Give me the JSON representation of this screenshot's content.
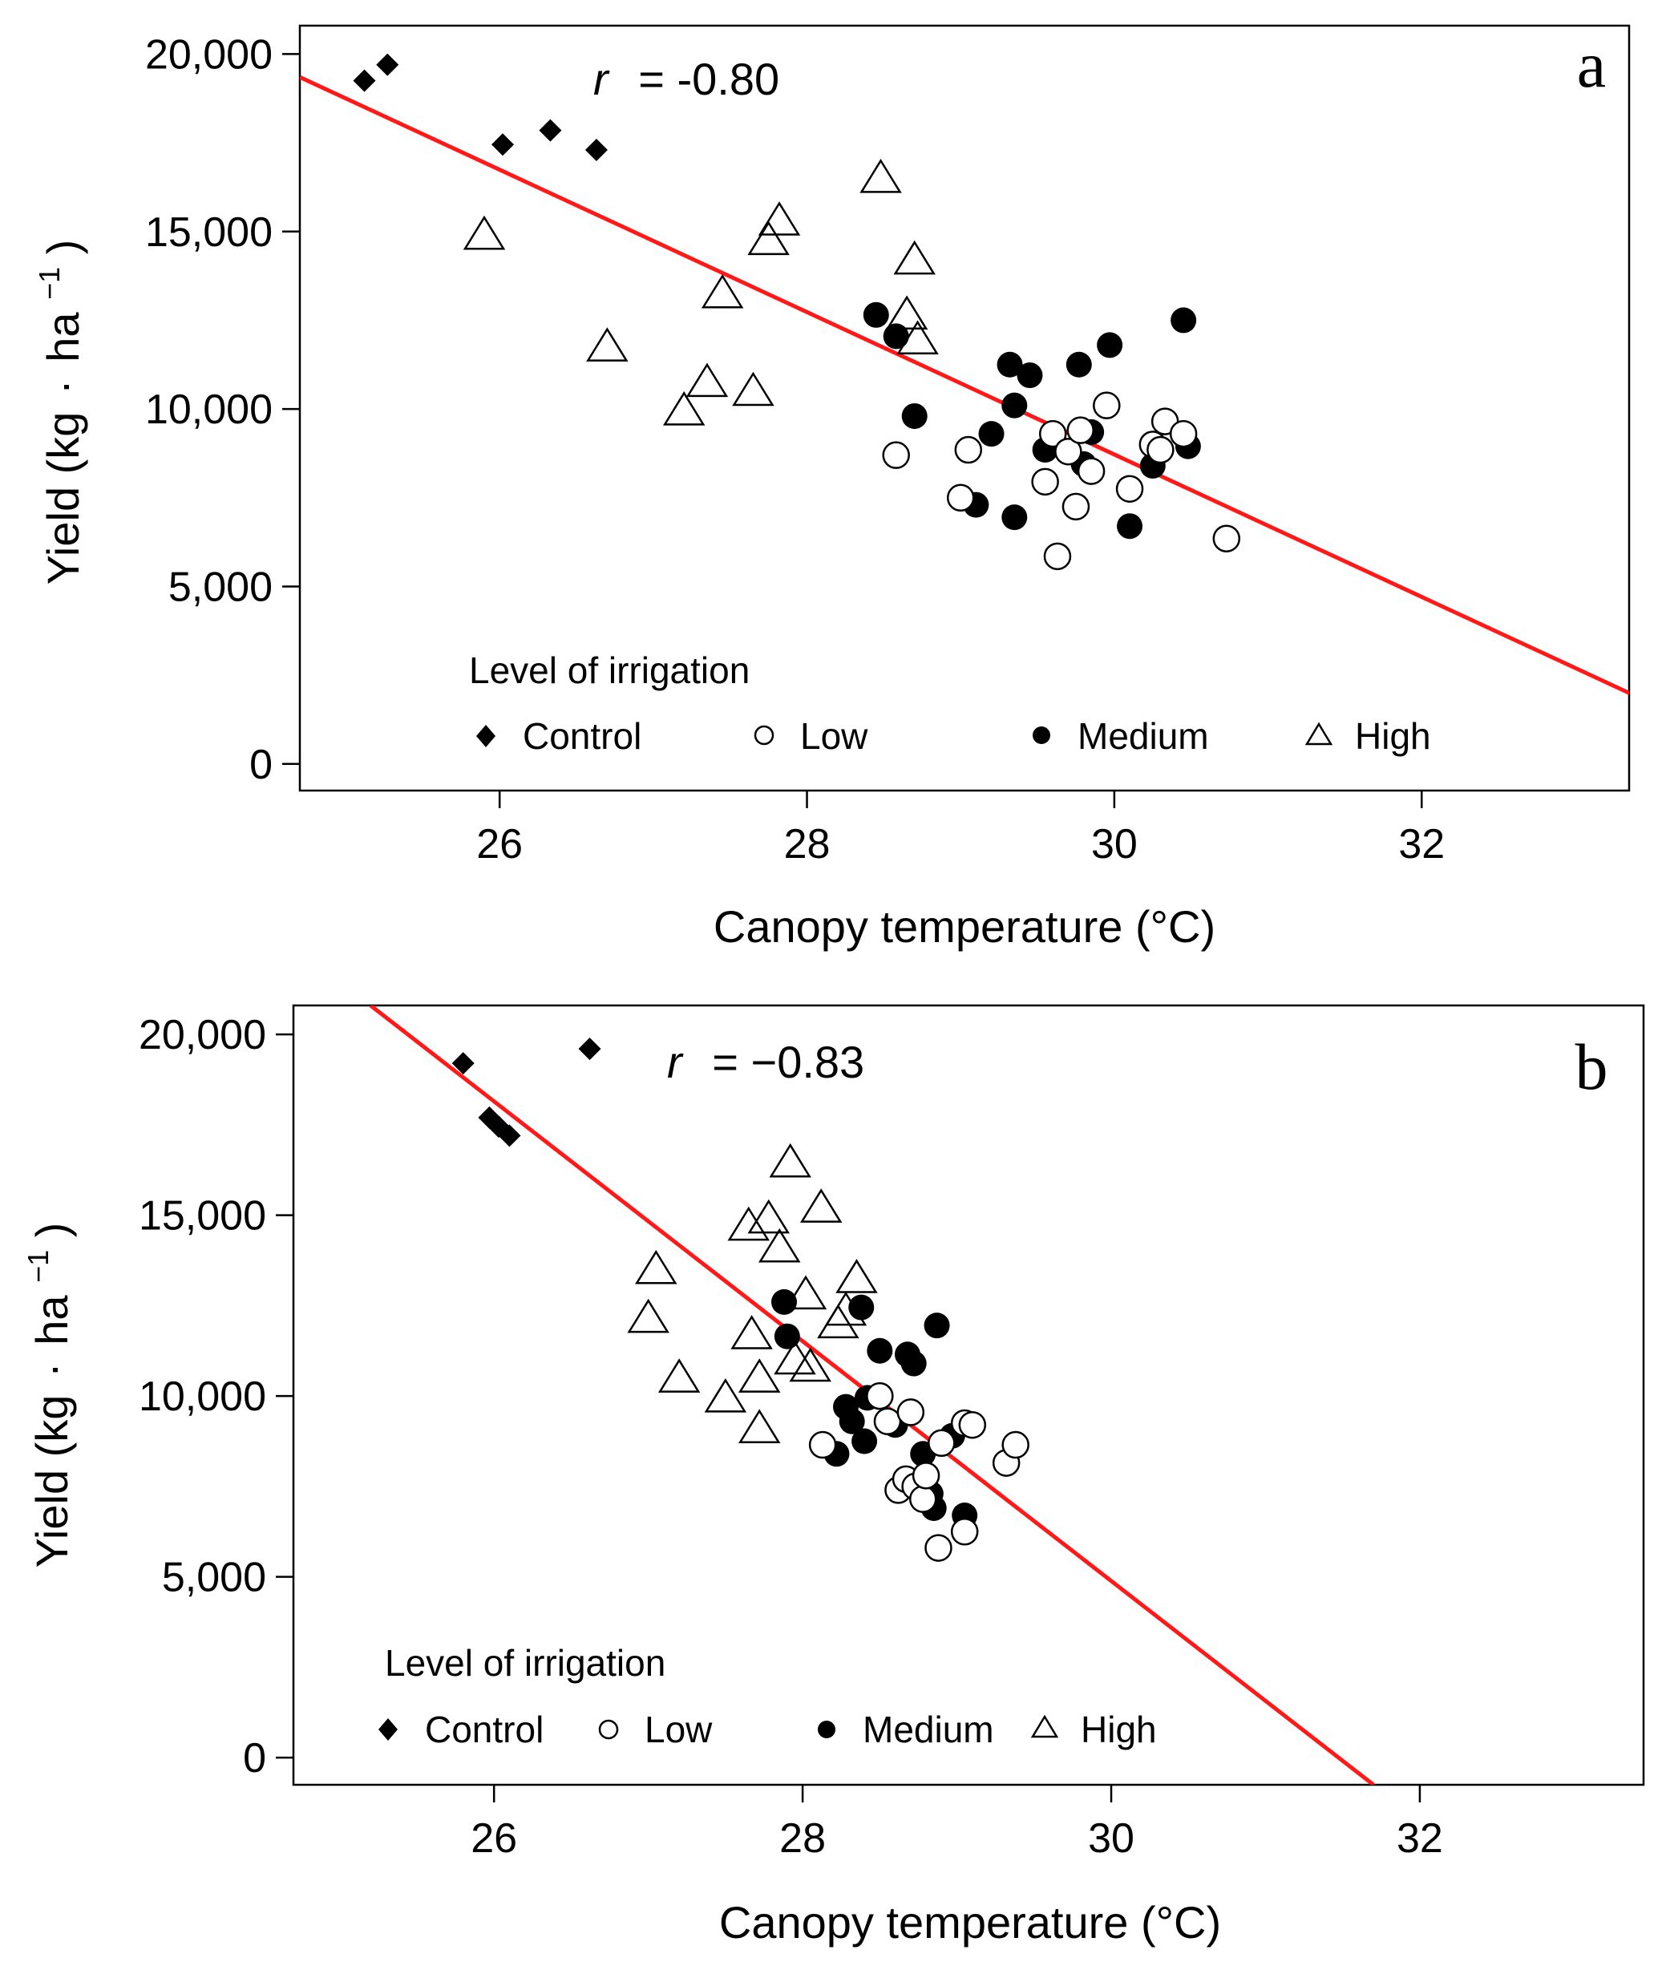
{
  "colors": {
    "fit_line": "#ff1a1a",
    "points": "#000000",
    "background": "#ffffff"
  },
  "chart_data": [
    {
      "type": "scatter",
      "panel_label": "a",
      "title": "",
      "xlabel": "Canopy temperature (°C)",
      "ylabel_prefix": "Yield (kg",
      "ylabel_dot": "·",
      "ylabel_unit": "ha",
      "ylabel_exp": "−1",
      "ylabel_suffix": ")",
      "xlim": [
        24.7,
        33.35
      ],
      "ylim": [
        -750,
        20800
      ],
      "x_ticks": [
        26,
        28,
        30,
        32
      ],
      "x_tick_labels": [
        "26",
        "28",
        "30",
        "32"
      ],
      "y_ticks": [
        0,
        5000,
        10000,
        15000,
        20000
      ],
      "y_tick_labels": [
        "0",
        "5,000",
        "10,000",
        "15,000",
        "20,000"
      ],
      "grid": false,
      "correlation": {
        "symbol": "r",
        "equals": "=",
        "value": "-0.80"
      },
      "fit_line": {
        "x1": 24.7,
        "y1": 19350,
        "x2": 33.35,
        "y2": 2000
      },
      "legend": {
        "title": "Level of irrigation",
        "placement": "bottom-left",
        "entries": [
          {
            "label": "Control",
            "marker": "diamond"
          },
          {
            "label": "Low",
            "marker": "open-circle"
          },
          {
            "label": "Medium",
            "marker": "filled-circle"
          },
          {
            "label": "High",
            "marker": "open-triangle"
          }
        ]
      },
      "series": [
        {
          "name": "Control",
          "marker": "diamond",
          "points": [
            [
              25.12,
              19250
            ],
            [
              25.27,
              19700
            ],
            [
              26.02,
              17450
            ],
            [
              26.33,
              17850
            ],
            [
              26.63,
              17300
            ]
          ]
        },
        {
          "name": "High",
          "marker": "open-triangle",
          "points": [
            [
              25.9,
              14900
            ],
            [
              26.7,
              11750
            ],
            [
              27.2,
              9950
            ],
            [
              27.35,
              10750
            ],
            [
              27.45,
              13250
            ],
            [
              27.65,
              10500
            ],
            [
              27.75,
              14750
            ],
            [
              27.82,
              15300
            ],
            [
              28.48,
              16500
            ],
            [
              28.65,
              12650
            ],
            [
              28.7,
              14200
            ],
            [
              28.72,
              11950
            ]
          ]
        },
        {
          "name": "Medium",
          "marker": "filled-circle",
          "points": [
            [
              28.45,
              12650
            ],
            [
              28.58,
              12050
            ],
            [
              28.7,
              9800
            ],
            [
              29.1,
              7300
            ],
            [
              29.2,
              9300
            ],
            [
              29.32,
              11250
            ],
            [
              29.35,
              10100
            ],
            [
              29.45,
              10950
            ],
            [
              29.35,
              6950
            ],
            [
              29.55,
              8850
            ],
            [
              29.77,
              11250
            ],
            [
              29.8,
              8450
            ],
            [
              29.85,
              9350
            ],
            [
              29.97,
              11800
            ],
            [
              30.1,
              6700
            ],
            [
              30.25,
              8400
            ],
            [
              30.45,
              12500
            ],
            [
              30.48,
              8950
            ]
          ]
        },
        {
          "name": "Low",
          "marker": "open-circle",
          "points": [
            [
              28.58,
              8700
            ],
            [
              29.0,
              7500
            ],
            [
              29.05,
              8850
            ],
            [
              29.55,
              7950
            ],
            [
              29.6,
              9300
            ],
            [
              29.63,
              5850
            ],
            [
              29.7,
              8800
            ],
            [
              29.75,
              7250
            ],
            [
              29.78,
              9400
            ],
            [
              29.85,
              8250
            ],
            [
              29.95,
              10100
            ],
            [
              30.1,
              7750
            ],
            [
              30.25,
              9000
            ],
            [
              30.3,
              8850
            ],
            [
              30.33,
              9650
            ],
            [
              30.45,
              9300
            ],
            [
              30.73,
              6350
            ]
          ]
        }
      ]
    },
    {
      "type": "scatter",
      "panel_label": "b",
      "title": "",
      "xlabel": "Canopy temperature (°C)",
      "ylabel_prefix": "Yield (kg",
      "ylabel_dot": "·",
      "ylabel_unit": "ha",
      "ylabel_exp": "−1",
      "ylabel_suffix": ")",
      "xlim": [
        24.7,
        33.45
      ],
      "ylim": [
        -750,
        20800
      ],
      "x_ticks": [
        26,
        28,
        30,
        32
      ],
      "x_tick_labels": [
        "26",
        "28",
        "30",
        "32"
      ],
      "y_ticks": [
        0,
        5000,
        10000,
        15000,
        20000
      ],
      "y_tick_labels": [
        "0",
        "5,000",
        "10,000",
        "15,000",
        "20,000"
      ],
      "grid": false,
      "correlation": {
        "symbol": "r",
        "equals": "=",
        "value": "−0.83"
      },
      "fit_line": {
        "x1": 25.2,
        "y1": 20800,
        "x2": 31.7,
        "y2": -750
      },
      "legend": {
        "title": "Level of irrigation",
        "placement": "bottom-left",
        "entries": [
          {
            "label": "Control",
            "marker": "diamond"
          },
          {
            "label": "Low",
            "marker": "open-circle"
          },
          {
            "label": "Medium",
            "marker": "filled-circle"
          },
          {
            "label": "High",
            "marker": "open-triangle"
          }
        ]
      },
      "series": [
        {
          "name": "Control",
          "marker": "diamond",
          "points": [
            [
              25.8,
              19200
            ],
            [
              25.97,
              17700
            ],
            [
              26.03,
              17450
            ],
            [
              26.1,
              17200
            ],
            [
              26.62,
              19600
            ]
          ]
        },
        {
          "name": "High",
          "marker": "open-triangle",
          "points": [
            [
              27.0,
              12150
            ],
            [
              27.05,
              13500
            ],
            [
              27.2,
              10500
            ],
            [
              27.5,
              9950
            ],
            [
              27.65,
              14700
            ],
            [
              27.67,
              11700
            ],
            [
              27.72,
              10500
            ],
            [
              27.72,
              9100
            ],
            [
              27.78,
              14900
            ],
            [
              27.85,
              14100
            ],
            [
              27.92,
              16450
            ],
            [
              27.95,
              11000
            ],
            [
              28.02,
              12800
            ],
            [
              28.05,
              10800
            ],
            [
              28.12,
              15200
            ],
            [
              28.23,
              12000
            ],
            [
              28.28,
              12350
            ],
            [
              28.35,
              13250
            ]
          ]
        },
        {
          "name": "Medium",
          "marker": "filled-circle",
          "points": [
            [
              27.88,
              12600
            ],
            [
              27.9,
              11650
            ],
            [
              28.22,
              8400
            ],
            [
              28.28,
              9700
            ],
            [
              28.32,
              9300
            ],
            [
              28.38,
              12450
            ],
            [
              28.4,
              8750
            ],
            [
              28.42,
              9950
            ],
            [
              28.5,
              11250
            ],
            [
              28.6,
              9200
            ],
            [
              28.68,
              11150
            ],
            [
              28.72,
              10900
            ],
            [
              28.78,
              8400
            ],
            [
              28.83,
              7300
            ],
            [
              28.85,
              6900
            ],
            [
              28.87,
              11950
            ],
            [
              28.97,
              8900
            ],
            [
              29.05,
              6700
            ]
          ]
        },
        {
          "name": "Low",
          "marker": "open-circle",
          "points": [
            [
              28.13,
              8650
            ],
            [
              28.5,
              10000
            ],
            [
              28.55,
              9300
            ],
            [
              28.62,
              7400
            ],
            [
              28.67,
              7700
            ],
            [
              28.7,
              9550
            ],
            [
              28.73,
              7500
            ],
            [
              28.78,
              7150
            ],
            [
              28.8,
              7800
            ],
            [
              28.88,
              5800
            ],
            [
              28.9,
              8700
            ],
            [
              29.05,
              6250
            ],
            [
              29.05,
              9250
            ],
            [
              29.1,
              9200
            ],
            [
              29.32,
              8150
            ],
            [
              29.38,
              8650
            ]
          ]
        }
      ]
    }
  ]
}
